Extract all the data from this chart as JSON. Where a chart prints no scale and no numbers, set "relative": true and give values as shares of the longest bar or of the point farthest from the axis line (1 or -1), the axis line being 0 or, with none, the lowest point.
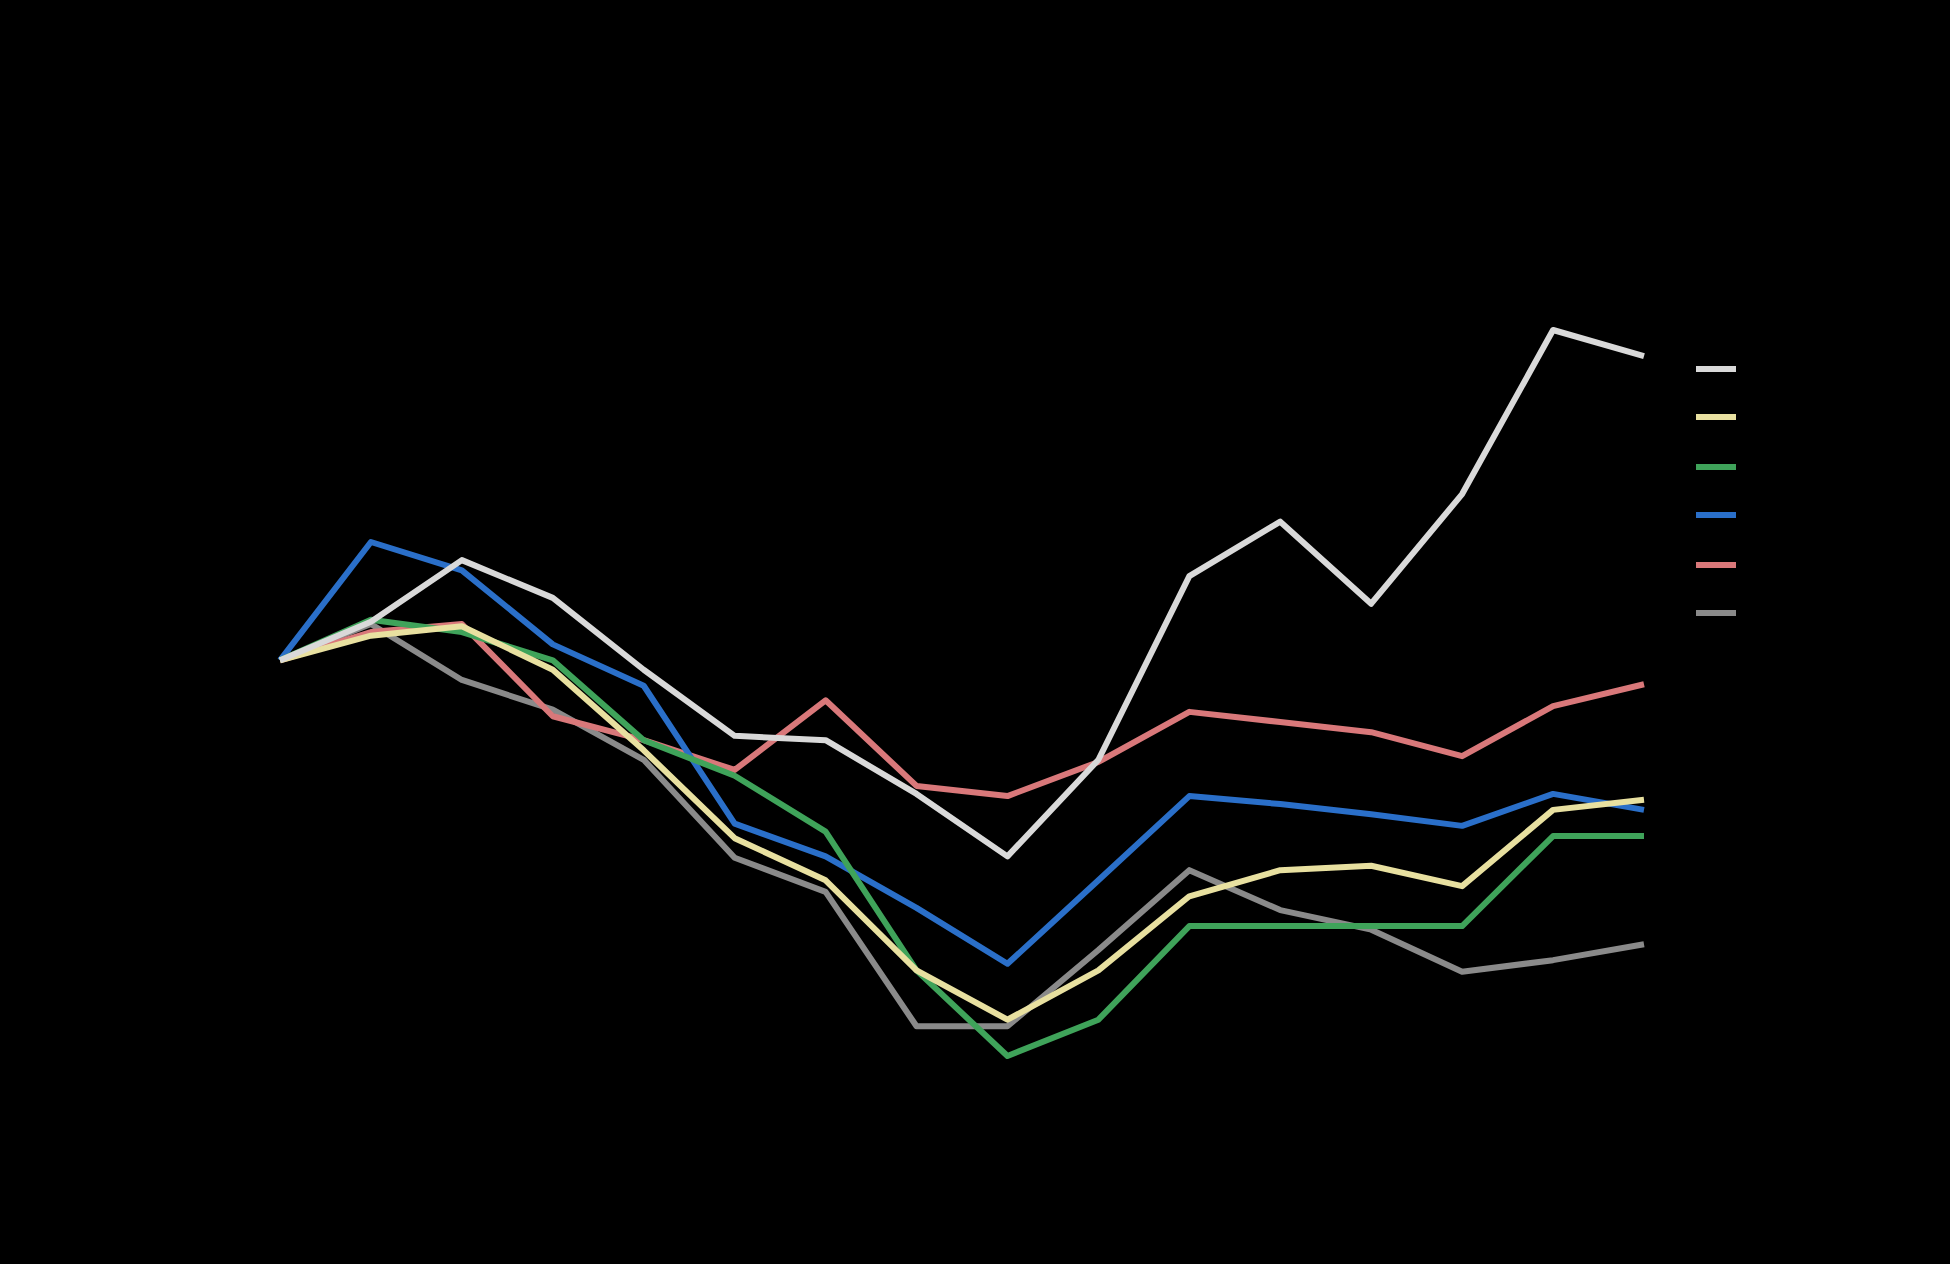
{
  "chart_data": {
    "type": "line",
    "relative": true,
    "marker": "none",
    "line_style": "solid",
    "categories": [
      null,
      null,
      null,
      null,
      null,
      null,
      null,
      null,
      null,
      null,
      null,
      null,
      null,
      null,
      null,
      null
    ],
    "series": [
      {
        "color": "#d9d9d9",
        "values": [
          0.545,
          0.598,
          0.683,
          0.631,
          0.532,
          0.441,
          0.435,
          0.361,
          0.275,
          0.408,
          0.661,
          0.736,
          0.623,
          0.774,
          1,
          0.964
        ]
      },
      {
        "color": "#e8e0a0",
        "values": [
          0.545,
          0.579,
          0.592,
          0.532,
          0.421,
          0.3,
          0.242,
          0.118,
          0.05,
          0.118,
          0.22,
          0.256,
          0.262,
          0.234,
          0.339,
          0.353
        ]
      },
      {
        "color": "#3fa35a",
        "values": [
          0.545,
          0.601,
          0.584,
          0.545,
          0.435,
          0.386,
          0.309,
          0.118,
          0,
          0.05,
          0.179,
          0.179,
          0.179,
          0.179,
          0.303,
          0.303
        ]
      },
      {
        "color": "#2a6fc9",
        "values": [
          0.545,
          0.708,
          0.669,
          0.567,
          0.51,
          0.32,
          0.275,
          0.204,
          0.127,
          0.242,
          0.358,
          0.347,
          0.333,
          0.317,
          0.361,
          0.339
        ]
      },
      {
        "color": "#d9787a",
        "values": [
          0.545,
          0.584,
          0.595,
          0.468,
          0.435,
          0.394,
          0.49,
          0.372,
          0.358,
          0.405,
          0.474,
          0.46,
          0.446,
          0.413,
          0.482,
          0.512
        ]
      },
      {
        "color": "#8a8a8a",
        "values": [
          0.545,
          0.595,
          0.518,
          0.477,
          0.408,
          0.273,
          0.226,
          0.041,
          0.041,
          0.146,
          0.256,
          0.201,
          0.174,
          0.116,
          0.132,
          0.154
        ]
      }
    ]
  }
}
